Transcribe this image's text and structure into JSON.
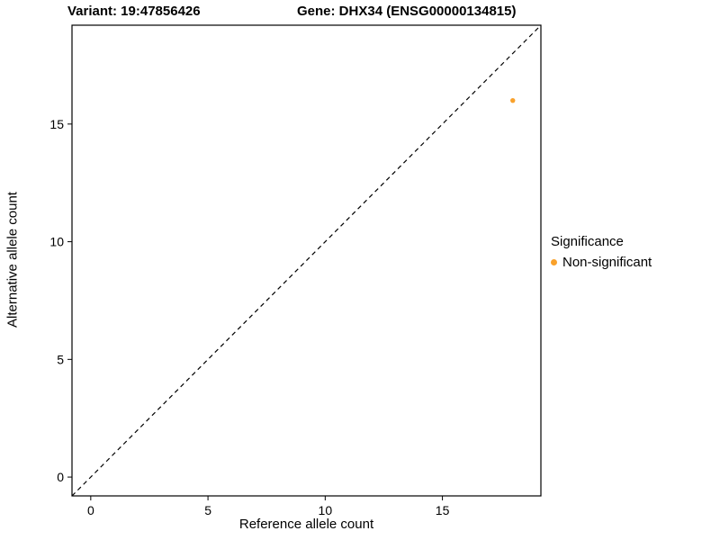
{
  "header": {
    "variant_title": "Variant: 19:47856426",
    "gene_title": "Gene: DHX34 (ENSG00000134815)"
  },
  "axes": {
    "xlabel": "Reference allele count",
    "ylabel": "Alternative allele count"
  },
  "legend": {
    "title": "Significance",
    "items": [
      {
        "label": "Non-significant",
        "color": "#F9A12B"
      }
    ]
  },
  "chart_data": {
    "type": "scatter",
    "title": "Variant: 19:47856426 / Gene: DHX34 (ENSG00000134815)",
    "xlabel": "Reference allele count",
    "ylabel": "Alternative allele count",
    "xlim": [
      -0.8,
      19.2
    ],
    "ylim": [
      -0.8,
      19.2
    ],
    "xticks": [
      0,
      5,
      10,
      15
    ],
    "yticks": [
      0,
      5,
      10,
      15
    ],
    "grid": false,
    "legend_position": "right",
    "series": [
      {
        "name": "Non-significant",
        "color": "#F9A12B",
        "points": [
          {
            "x": 18,
            "y": 16
          }
        ]
      }
    ],
    "reference_line": {
      "kind": "identity",
      "style": "dashed",
      "from": [
        -0.8,
        -0.8
      ],
      "to": [
        19.2,
        19.2
      ],
      "color": "#000000"
    }
  }
}
